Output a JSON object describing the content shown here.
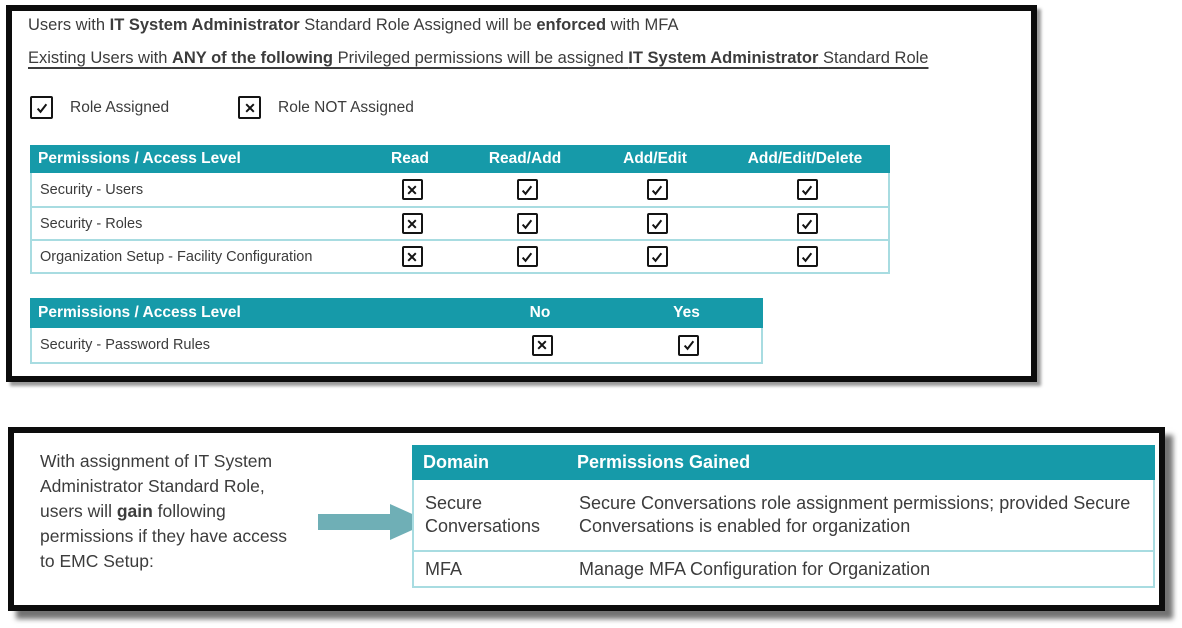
{
  "colors": {
    "teal": "#169AA9",
    "row_border": "#A8DCE1",
    "arrow": "#6FAFB6",
    "text": "#3C3C3C"
  },
  "top_panel": {
    "line1": [
      "Users with ",
      "IT System Administrator",
      " Standard Role Assigned will be ",
      "enforced",
      " with MFA"
    ],
    "line2": [
      "Existing Users with ",
      "ANY of the following",
      " Privileged permissions will be assigned ",
      "IT System Administrator",
      " Standard Role"
    ],
    "legend": {
      "items": [
        {
          "mark": "check",
          "label": "Role Assigned"
        },
        {
          "mark": "x",
          "label": "Role NOT Assigned"
        }
      ]
    },
    "permissions_table": {
      "headers": [
        "Permissions / Access Level",
        "Read",
        "Read/Add",
        "Add/Edit",
        "Add/Edit/Delete"
      ],
      "rows": [
        {
          "label": "Security - Users",
          "marks": [
            "x",
            "check",
            "check",
            "check"
          ]
        },
        {
          "label": "Security - Roles",
          "marks": [
            "x",
            "check",
            "check",
            "check"
          ]
        },
        {
          "label": "Organization Setup - Facility Configuration",
          "marks": [
            "x",
            "check",
            "check",
            "check"
          ]
        }
      ]
    },
    "password_table": {
      "headers": [
        "Permissions / Access Level",
        "No",
        "Yes"
      ],
      "rows": [
        {
          "label": "Security - Password Rules",
          "marks": [
            "x",
            "check"
          ]
        }
      ]
    }
  },
  "bottom_panel": {
    "side_text": [
      "With assignment of IT System Administrator Standard Role, users will ",
      "gain",
      " following permissions if they have access to EMC Setup:"
    ],
    "gained_table": {
      "headers": [
        "Domain",
        "Permissions Gained"
      ],
      "rows": [
        {
          "domain": "Secure Conversations",
          "permissions": "Secure Conversations role assignment permissions; provided Secure Conversations is enabled for organization"
        },
        {
          "domain": "MFA",
          "permissions": "Manage MFA Configuration for Organization"
        }
      ]
    }
  }
}
